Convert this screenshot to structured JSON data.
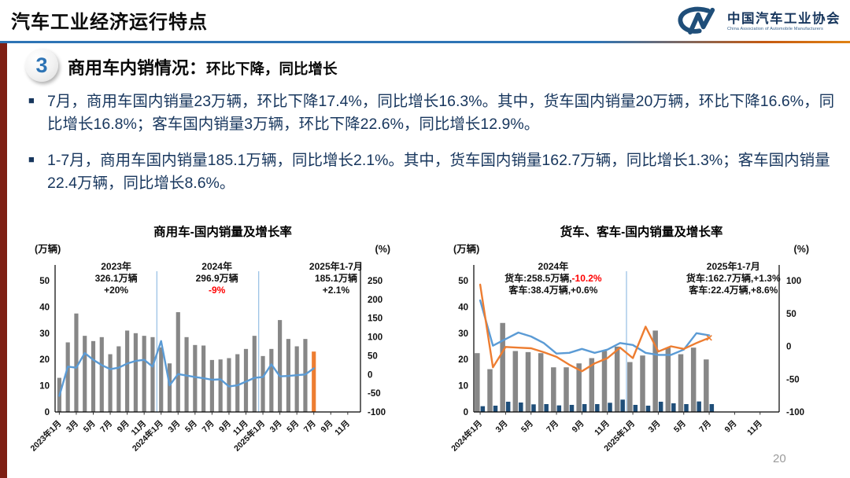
{
  "page": {
    "page_number": "20",
    "background": "#FFFFFF"
  },
  "header": {
    "title": "汽车工业经济运行特点",
    "logo": {
      "mark": "CM-monogram",
      "org_cn": "中国汽车工业协会",
      "org_en": "China Association of Automobile Manufacturers"
    }
  },
  "section": {
    "badge": "3",
    "heading_main": "商用车内销情况：",
    "heading_sub": "环比下降，同比增长"
  },
  "bullets": [
    {
      "text": "7月，商用车国内销量23万辆，环比下降17.4%，同比增长16.3%。其中，货车国内销量20万辆，环比下降16.6%，同比增长16.8%；客车国内销量3万辆，环比下降22.6%，同比增长12.9%。"
    },
    {
      "text": "1-7月，商用车国内销量185.1万辆，同比增长2.1%。其中，货车国内销量162.7万辆，同比增长1.3%；客车国内销量22.4万辆，同比增长8.6%。"
    }
  ],
  "colors": {
    "accent_blue": "#2E74B5",
    "accent_orange": "#C55A11",
    "text_navy": "#17365D",
    "bar_gray": "#878787",
    "bar_navy": "#1F4E79",
    "line_blue": "#5B9BD5",
    "line_orange": "#ED7D31",
    "highlight_orange_bar": "#ED7D31",
    "separator_blue": "#9DC3E6",
    "stripe_maroon": "#7E1F14",
    "red": "#FF0000"
  },
  "chart_data": [
    {
      "type": "bar+line",
      "title": "商用车-国内销量及增长率",
      "left_axis": {
        "label": "(万辆)",
        "min": 0,
        "max": 50,
        "ticks": [
          0,
          10,
          20,
          30,
          40,
          50
        ]
      },
      "right_axis": {
        "label": "(%)",
        "min": -100,
        "max": 250,
        "ticks": [
          250,
          200,
          150,
          100,
          50,
          0,
          -50,
          -100
        ]
      },
      "slots": 36,
      "x_tick_every": 2,
      "x_tick_labels": [
        "2023年1月",
        "3月",
        "5月",
        "7月",
        "9月",
        "11月",
        "2024年1月",
        "3月",
        "5月",
        "7月",
        "9月",
        "11月",
        "2025年1月",
        "3月",
        "5月",
        "7月",
        "9月",
        "11月"
      ],
      "separators": [
        12,
        24
      ],
      "bar_series": [
        {
          "name": "商用车国内销量(万辆)",
          "color": "#878787",
          "last_color": "#ED7D31",
          "values": [
            13,
            26.5,
            37.5,
            29,
            27,
            28.5,
            22,
            25,
            31,
            30,
            29,
            28.5,
            24.6,
            18.5,
            38,
            28.5,
            25.5,
            25.3,
            19.8,
            20,
            20.5,
            22,
            24,
            29,
            21.3,
            24,
            35,
            27.8,
            25,
            27.8,
            23
          ]
        }
      ],
      "line_series": [
        {
          "name": "同比增长率(%)",
          "color": "#5B9BD5",
          "values": [
            -57,
            21,
            18,
            57,
            39,
            25,
            14,
            18,
            29,
            36,
            39,
            21,
            89,
            -29,
            1,
            -3,
            -7,
            -10,
            -14,
            -13,
            -32,
            -29,
            -19,
            -9,
            -7,
            27,
            -5,
            -4,
            -2,
            0,
            16.3
          ]
        }
      ],
      "annotations": [
        {
          "x_frac": 0.2,
          "lines": [
            [
              {
                "t": "2023年"
              }
            ],
            [
              {
                "t": "326.1万辆"
              }
            ],
            [
              {
                "t": "+20%"
              }
            ]
          ]
        },
        {
          "x_frac": 0.53,
          "lines": [
            [
              {
                "t": "2024年"
              }
            ],
            [
              {
                "t": "296.9万辆"
              }
            ],
            [
              {
                "t": "-9%",
                "red": true
              }
            ]
          ]
        },
        {
          "x_frac": 0.92,
          "lines": [
            [
              {
                "t": "2025年1-7月"
              }
            ],
            [
              {
                "t": "185.1万辆"
              }
            ],
            [
              {
                "t": "+2.1%"
              }
            ]
          ]
        }
      ]
    },
    {
      "type": "bar+line",
      "title": "货车、客车-国内销量及增长率",
      "left_axis": {
        "label": "(万辆)",
        "min": 0,
        "max": 50,
        "ticks": [
          0,
          10,
          20,
          30,
          40,
          50
        ]
      },
      "right_axis": {
        "label": "(%)",
        "min": -100,
        "max": 100,
        "ticks": [
          100,
          50,
          0,
          -50,
          -100
        ]
      },
      "slots": 24,
      "x_tick_every": 2,
      "x_tick_labels": [
        "2024年1月",
        "3月",
        "5月",
        "7月",
        "9月",
        "11月",
        "2025年1月",
        "3月",
        "5月",
        "7月",
        "9月",
        "11月"
      ],
      "separators": [
        12
      ],
      "bar_series": [
        {
          "name": "货车国内销量(万辆)",
          "color": "#878787",
          "values": [
            22.4,
            16.3,
            33.9,
            23.2,
            22.8,
            22.4,
            17,
            17,
            18.5,
            20.5,
            23.3,
            24.9,
            19,
            21.5,
            31,
            24.5,
            22,
            24.5,
            20
          ]
        },
        {
          "name": "客车国内销量(万辆)",
          "color": "#1F4E79",
          "values": [
            2.2,
            2.4,
            3.9,
            3.6,
            2.9,
            3.0,
            2.5,
            2.7,
            3.0,
            3.0,
            3.5,
            4.7,
            2.7,
            2.4,
            3.9,
            3.3,
            3.0,
            4.0,
            3.0
          ]
        }
      ],
      "line_series": [
        {
          "name": "货车同比增长率(%)",
          "color": "#5B9BD5",
          "values": [
            70,
            1,
            11,
            21,
            15,
            5,
            -11,
            -10,
            -4,
            -10,
            -5,
            5,
            2,
            -10,
            -13,
            -13,
            -5,
            20,
            16.8
          ]
        },
        {
          "name": "客车同比增长率(%)",
          "color": "#ED7D31",
          "end_marker": true,
          "values": [
            94,
            -32,
            -1,
            -2,
            -3,
            -9,
            -16,
            -28,
            -38,
            -26,
            -18,
            -2,
            -18,
            30,
            -8,
            0,
            -4,
            5,
            12.9
          ]
        }
      ],
      "annotations": [
        {
          "x_frac": 0.26,
          "lines": [
            [
              {
                "t": "2024年"
              }
            ],
            [
              {
                "t": "货车:258.5万辆,"
              },
              {
                "t": "-10.2%",
                "red": true
              }
            ],
            [
              {
                "t": "客车:38.4万辆,+0.6%"
              }
            ]
          ]
        },
        {
          "x_frac": 0.85,
          "lines": [
            [
              {
                "t": "2025年1-7月"
              }
            ],
            [
              {
                "t": "货车:162.7万辆,+1.3%"
              }
            ],
            [
              {
                "t": "客车:22.4万辆,+8.6%"
              }
            ]
          ]
        }
      ]
    }
  ]
}
